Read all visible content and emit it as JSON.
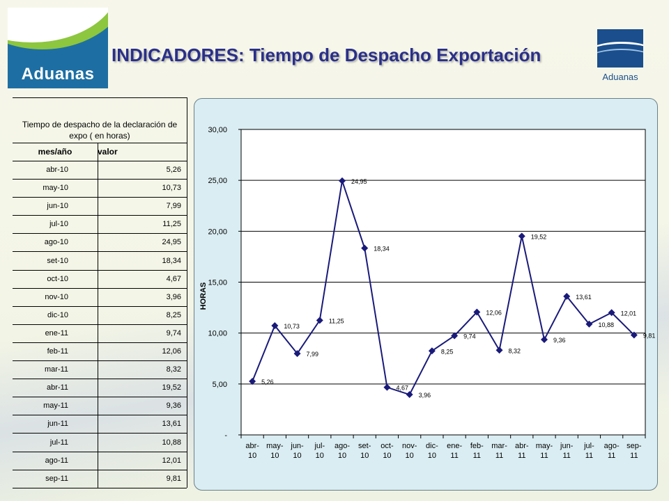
{
  "title": "INDICADORES: Tiempo de Despacho Exportación",
  "logo_left_text": "Aduanas",
  "logo_right_text": "Aduanas",
  "table": {
    "heading": "Tiempo de despacho de la declaración de expo ( en horas)",
    "col_month": "mes/año",
    "col_value": "valor",
    "rows": [
      {
        "month": "abr-10",
        "value": "5,26"
      },
      {
        "month": "may-10",
        "value": "10,73"
      },
      {
        "month": "jun-10",
        "value": "7,99"
      },
      {
        "month": "jul-10",
        "value": "11,25"
      },
      {
        "month": "ago-10",
        "value": "24,95"
      },
      {
        "month": "set-10",
        "value": "18,34"
      },
      {
        "month": "oct-10",
        "value": "4,67"
      },
      {
        "month": "nov-10",
        "value": "3,96"
      },
      {
        "month": "dic-10",
        "value": "8,25"
      },
      {
        "month": "ene-11",
        "value": "9,74"
      },
      {
        "month": "feb-11",
        "value": "12,06"
      },
      {
        "month": "mar-11",
        "value": "8,32"
      },
      {
        "month": "abr-11",
        "value": "19,52"
      },
      {
        "month": "may-11",
        "value": "9,36"
      },
      {
        "month": "jun-11",
        "value": "13,61"
      },
      {
        "month": "jul-11",
        "value": "10,88"
      },
      {
        "month": "ago-11",
        "value": "12,01"
      },
      {
        "month": "sep-11",
        "value": "9,81"
      }
    ]
  },
  "chart_data": {
    "type": "line",
    "ylabel": "HORAS",
    "xlabel": "",
    "ylim": [
      0,
      30
    ],
    "yticks": [
      "-",
      "5,00",
      "10,00",
      "15,00",
      "20,00",
      "25,00",
      "30,00"
    ],
    "categories": [
      "abr-10",
      "may-10",
      "jun-10",
      "jul-10",
      "ago-10",
      "set-10",
      "oct-10",
      "nov-10",
      "dic-10",
      "ene-11",
      "feb-11",
      "mar-11",
      "abr-11",
      "may-11",
      "jun-11",
      "jul-11",
      "ago-11",
      "sep-11"
    ],
    "category_lines": [
      [
        "abr-",
        "10"
      ],
      [
        "may-",
        "10"
      ],
      [
        "jun-",
        "10"
      ],
      [
        "jul-",
        "10"
      ],
      [
        "ago-",
        "10"
      ],
      [
        "set-",
        "10"
      ],
      [
        "oct-",
        "10"
      ],
      [
        "nov-",
        "10"
      ],
      [
        "dic-",
        "10"
      ],
      [
        "ene-",
        "11"
      ],
      [
        "feb-",
        "11"
      ],
      [
        "mar-",
        "11"
      ],
      [
        "abr-",
        "11"
      ],
      [
        "may-",
        "11"
      ],
      [
        "jun-",
        "11"
      ],
      [
        "jul-",
        "11"
      ],
      [
        "ago-",
        "11"
      ],
      [
        "sep-",
        "11"
      ]
    ],
    "values": [
      5.26,
      10.73,
      7.99,
      11.25,
      24.95,
      18.34,
      4.67,
      3.96,
      8.25,
      9.74,
      12.06,
      8.32,
      19.52,
      9.36,
      13.61,
      10.88,
      12.01,
      9.81
    ],
    "labels": [
      "5,26",
      "10,73",
      "7,99",
      "11,25",
      "24,95",
      "18,34",
      "4,67",
      "3,96",
      "8,25",
      "9,74",
      "12,06",
      "8,32",
      "19,52",
      "9,36",
      "13,61",
      "10,88",
      "12,01",
      "9,81"
    ],
    "grid": true,
    "line_color": "#1a1a7a",
    "legend": "none"
  }
}
